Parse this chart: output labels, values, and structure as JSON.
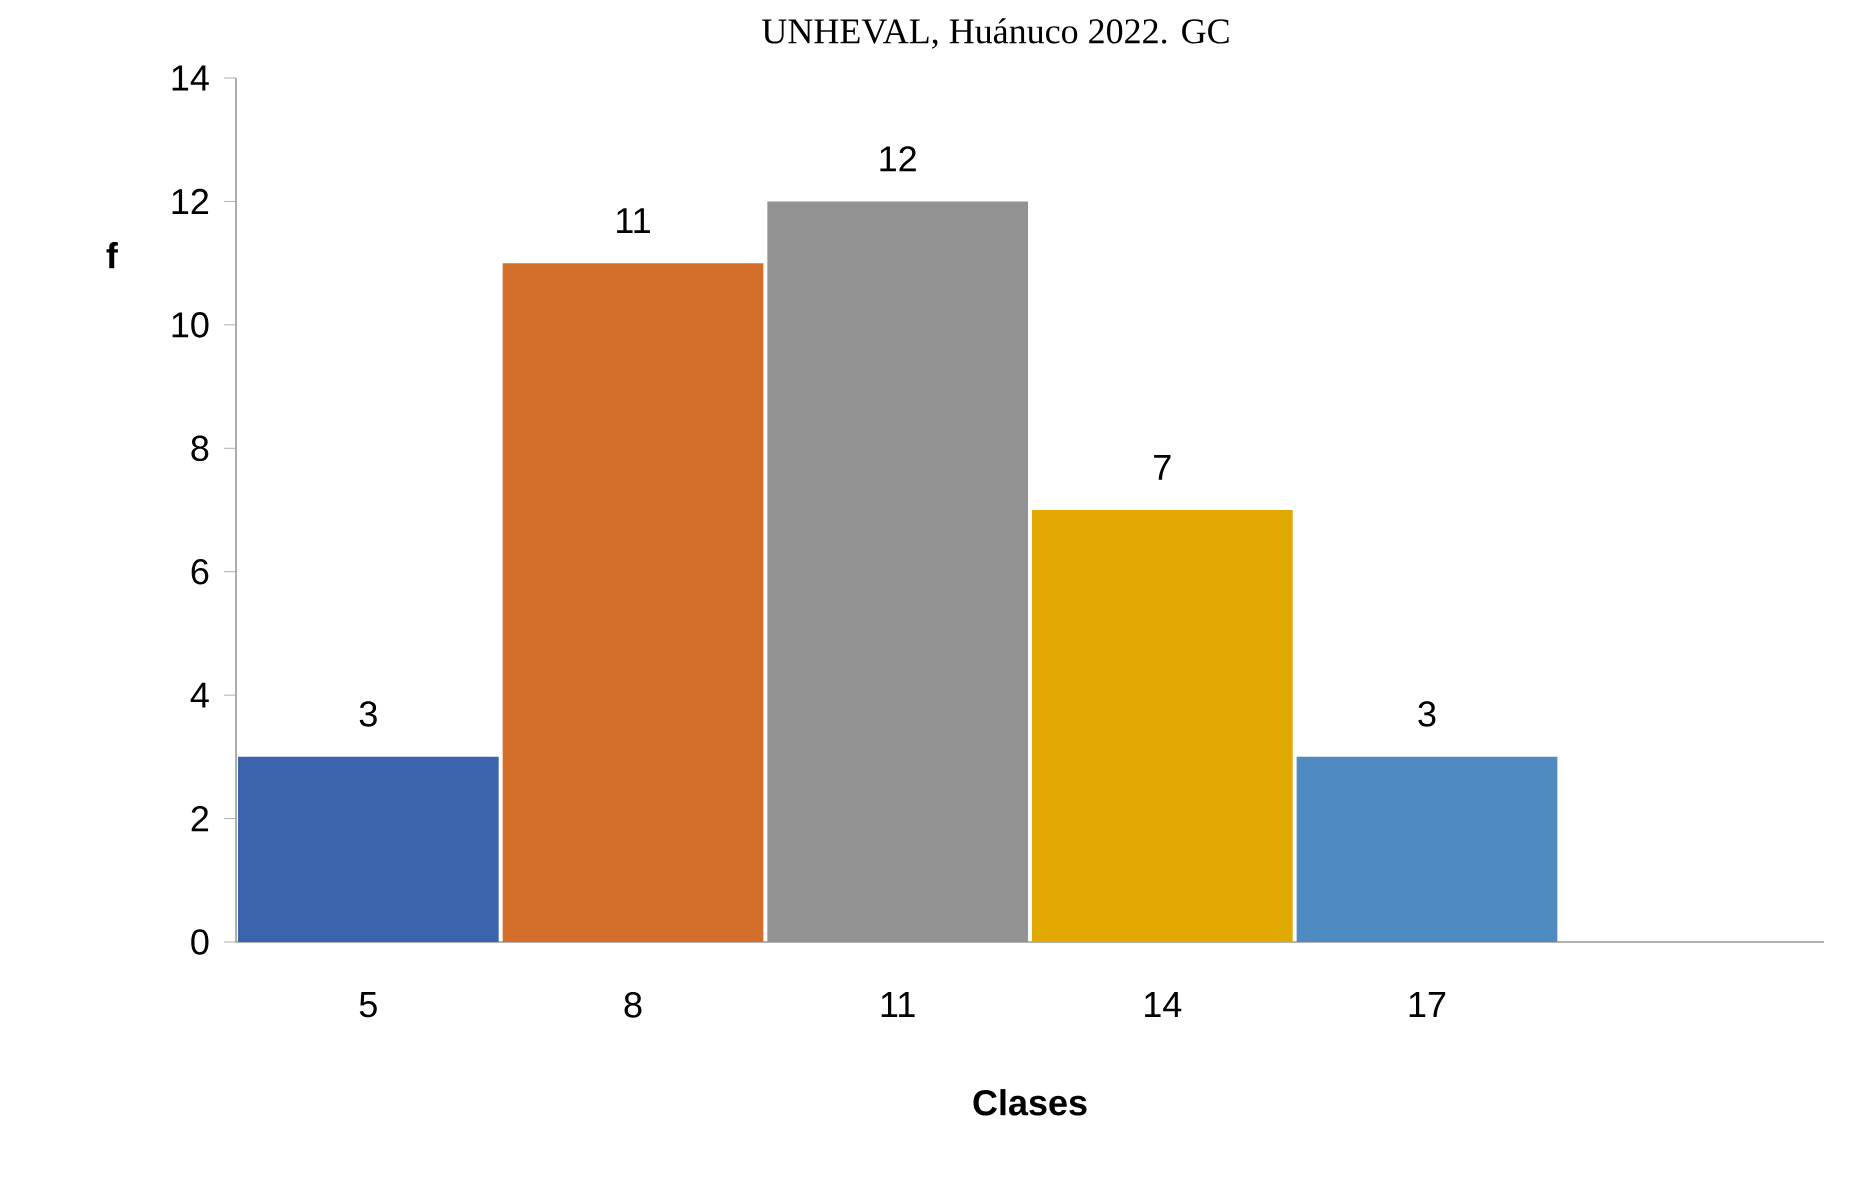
{
  "chart_data": {
    "type": "bar",
    "title": "UNHEVAL, Huánuco 2022. GC",
    "xlabel": "Clases",
    "ylabel": "f",
    "categories": [
      "5",
      "8",
      "11",
      "14",
      "17",
      null
    ],
    "values": [
      3,
      11,
      12,
      7,
      3,
      null
    ],
    "colors": [
      "#3c64ad",
      "#d46f2b",
      "#939393",
      "#e2aa00",
      "#4f8bc0",
      "#4f8bc0"
    ],
    "ylim": [
      0,
      14
    ],
    "yticks": [
      0,
      2,
      4,
      6,
      8,
      10,
      12,
      14
    ],
    "data_labels": true
  }
}
